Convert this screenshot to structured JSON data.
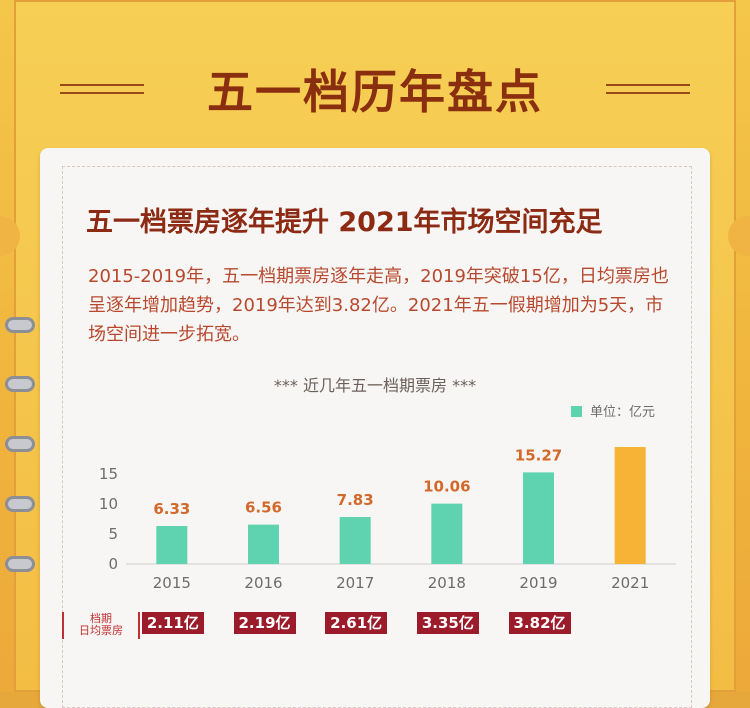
{
  "page": {
    "title": "五一档历年盘点",
    "headline": "五一档票房逐年提升  2021年市场空间充足",
    "paragraph": "2015-2019年，五一档期票房逐年走高，2019年突破15亿，日均票房也呈逐年增加趋势，2019年达到3.82亿。2021年五一假期增加为5天，市场空间进一步拓宽。",
    "chart_title": "*** 近几年五一档期票房 ***",
    "legend_label": "单位：亿元",
    "row_label_line1": "档期",
    "row_label_line2": "日均票房"
  },
  "colors": {
    "bar": "#5fd3b0",
    "bar_highlight": "#f6b335",
    "value_label": "#d2692a",
    "badge": "#9b1b2a"
  },
  "chart_data": {
    "type": "bar",
    "title": "近几年五一档期票房",
    "categories": [
      "2015",
      "2016",
      "2017",
      "2018",
      "2019",
      "2021"
    ],
    "series": [
      {
        "values": [
          6.33,
          6.56,
          7.83,
          10.06,
          15.27,
          null
        ]
      }
    ],
    "value_labels": [
      "6.33",
      "6.56",
      "7.83",
      "10.06",
      "15.27",
      ""
    ],
    "highlight_category": "2021",
    "highlight_value": 19.5,
    "ylim": [
      0,
      20
    ],
    "yticks": [
      "0",
      "5",
      "10",
      "15"
    ],
    "ylabel": "",
    "xlabel": "",
    "unit": "单位：亿元",
    "daily_box_office": [
      "2.11亿",
      "2.19亿",
      "2.61亿",
      "3.35亿",
      "3.82亿"
    ]
  }
}
